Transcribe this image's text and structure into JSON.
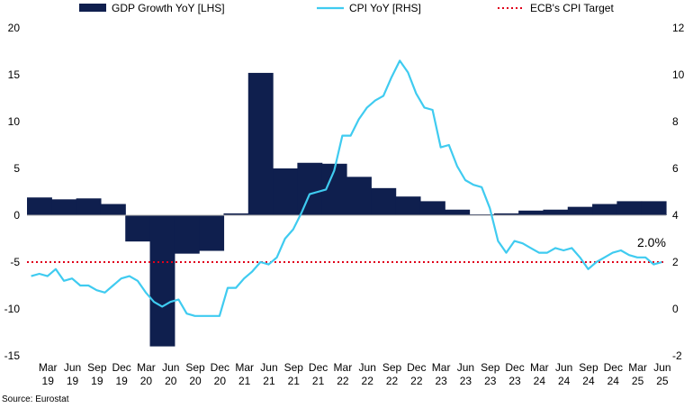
{
  "chart_data": {
    "type": "bar+line",
    "title": "",
    "source": "Source: Eurostat",
    "colors": {
      "gdp": "#0f1f4e",
      "cpi": "#3fcbf0",
      "target": "#e0001a"
    },
    "legend": {
      "placement": "top",
      "items": [
        {
          "label": "GDP Growth YoY [LHS]",
          "kind": "area",
          "color": "#0f1f4e"
        },
        {
          "label": "CPI YoY [RHS]",
          "kind": "line",
          "color": "#3fcbf0"
        },
        {
          "label": "ECB's CPI Target",
          "kind": "dotted-line",
          "color": "#e0001a"
        }
      ]
    },
    "x_ticks": [
      {
        "month": "Mar",
        "year": "19"
      },
      {
        "month": "Jun",
        "year": "19"
      },
      {
        "month": "Sep",
        "year": "19"
      },
      {
        "month": "Dec",
        "year": "19"
      },
      {
        "month": "Mar",
        "year": "20"
      },
      {
        "month": "Jun",
        "year": "20"
      },
      {
        "month": "Sep",
        "year": "20"
      },
      {
        "month": "Dec",
        "year": "20"
      },
      {
        "month": "Mar",
        "year": "21"
      },
      {
        "month": "Jun",
        "year": "21"
      },
      {
        "month": "Sep",
        "year": "21"
      },
      {
        "month": "Dec",
        "year": "21"
      },
      {
        "month": "Mar",
        "year": "22"
      },
      {
        "month": "Jun",
        "year": "22"
      },
      {
        "month": "Sep",
        "year": "22"
      },
      {
        "month": "Dec",
        "year": "22"
      },
      {
        "month": "Mar",
        "year": "23"
      },
      {
        "month": "Jun",
        "year": "23"
      },
      {
        "month": "Sep",
        "year": "23"
      },
      {
        "month": "Dec",
        "year": "23"
      },
      {
        "month": "Mar",
        "year": "24"
      },
      {
        "month": "Jun",
        "year": "24"
      },
      {
        "month": "Sep",
        "year": "24"
      },
      {
        "month": "Dec",
        "year": "24"
      },
      {
        "month": "Mar",
        "year": "25"
      },
      {
        "month": "Jun",
        "year": "25"
      }
    ],
    "y_left": {
      "min": -15,
      "max": 20,
      "ticks": [
        "20",
        "15",
        "10",
        "5",
        "0",
        "-5",
        "-10",
        "-15"
      ]
    },
    "y_right": {
      "min": -2,
      "max": 12,
      "ticks": [
        "12",
        "10",
        "8",
        "6",
        "4",
        "2",
        "0",
        "-2"
      ]
    },
    "gdp_quarterly": {
      "axis": "left",
      "quarters": [
        "2019-Q1",
        "2019-Q2",
        "2019-Q3",
        "2019-Q4",
        "2020-Q1",
        "2020-Q2",
        "2020-Q3",
        "2020-Q4",
        "2021-Q1",
        "2021-Q2",
        "2021-Q3",
        "2021-Q4",
        "2022-Q1",
        "2022-Q2",
        "2022-Q3",
        "2022-Q4",
        "2023-Q1",
        "2023-Q2",
        "2023-Q3",
        "2023-Q4",
        "2024-Q1",
        "2024-Q2",
        "2024-Q3",
        "2024-Q4",
        "2025-Q1",
        "2025-Q2"
      ],
      "values": [
        1.9,
        1.7,
        1.8,
        1.2,
        -2.8,
        -14.0,
        -4.1,
        -3.8,
        0.2,
        15.2,
        5.0,
        5.6,
        5.5,
        4.1,
        2.9,
        2.0,
        1.5,
        0.6,
        0.1,
        0.2,
        0.5,
        0.6,
        0.9,
        1.2,
        1.5,
        1.5
      ]
    },
    "cpi_monthly": {
      "axis": "right",
      "start": "2019-01",
      "values": [
        1.4,
        1.5,
        1.4,
        1.7,
        1.2,
        1.3,
        1.0,
        1.0,
        0.8,
        0.7,
        1.0,
        1.3,
        1.4,
        1.2,
        0.7,
        0.3,
        0.1,
        0.3,
        0.4,
        -0.2,
        -0.3,
        -0.3,
        -0.3,
        -0.3,
        0.9,
        0.9,
        1.3,
        1.6,
        2.0,
        1.9,
        2.2,
        3.0,
        3.4,
        4.1,
        4.9,
        5.0,
        5.1,
        5.9,
        7.4,
        7.4,
        8.1,
        8.6,
        8.9,
        9.1,
        9.9,
        10.6,
        10.1,
        9.2,
        8.6,
        8.5,
        6.9,
        7.0,
        6.1,
        5.5,
        5.3,
        5.2,
        4.3,
        2.9,
        2.4,
        2.9,
        2.8,
        2.6,
        2.4,
        2.4,
        2.6,
        2.5,
        2.6,
        2.2,
        1.7,
        2.0,
        2.2,
        2.4,
        2.5,
        2.3,
        2.2,
        2.2,
        1.9,
        2.0
      ]
    },
    "ecb_target": {
      "axis": "right",
      "value": 2.0
    },
    "annotation": "2.0%"
  }
}
